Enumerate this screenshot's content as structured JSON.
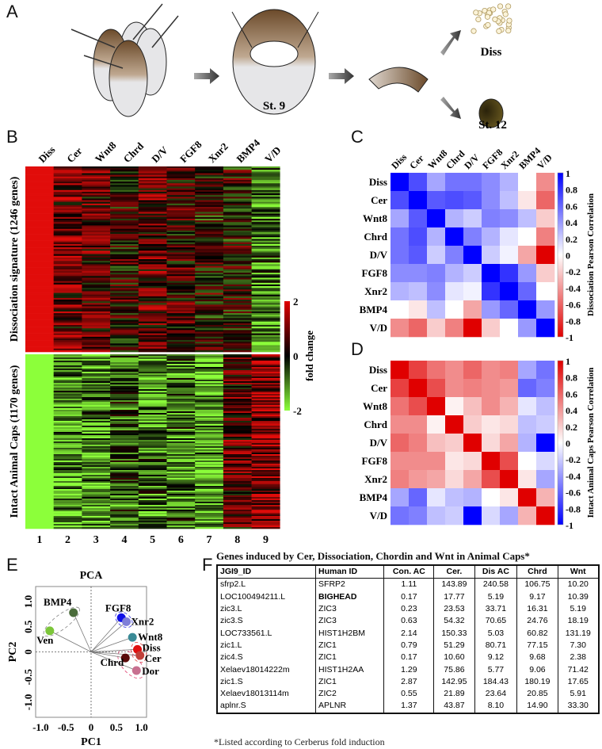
{
  "panel_letters": [
    "A",
    "B",
    "C",
    "D",
    "E",
    "F"
  ],
  "panel_a": {
    "stage9_label": "St. 9",
    "diss_label": "Diss",
    "stage12_label": "St. 12"
  },
  "chart_data": [
    {
      "type": "heatmap",
      "panel": "B",
      "column_labels": [
        "Diss",
        "Cer",
        "Wnt8",
        "Chrd",
        "D/V",
        "FGF8",
        "Xnr2",
        "BMP4",
        "V/D"
      ],
      "column_numbers": [
        "1",
        "2",
        "3",
        "4",
        "5",
        "6",
        "7",
        "8",
        "9"
      ],
      "row_groups": [
        {
          "label": "Dissociation signature (1246 genes)",
          "column_mean_fold_change": [
            2,
            0.9,
            0.7,
            0.2,
            0.8,
            0.4,
            0.1,
            0.1,
            -1.0
          ]
        },
        {
          "label": "Intact Animal Caps (1170 genes)",
          "column_mean_fold_change": [
            -2,
            -1.2,
            -1.0,
            -0.7,
            -0.9,
            -0.9,
            -1.3,
            0.7,
            1.1
          ]
        }
      ],
      "colorbar": {
        "label": "fold change",
        "ticks": [
          "2",
          "0",
          "-2"
        ],
        "range": [
          -2,
          2
        ],
        "colors": {
          "high": "#e00000",
          "mid": "#000000",
          "low": "#8cff3a"
        }
      }
    },
    {
      "type": "heatmap",
      "panel": "C",
      "labels": [
        "Diss",
        "Cer",
        "Wnt8",
        "Chrd",
        "D/V",
        "FGF8",
        "Xnr2",
        "BMP4",
        "V/D"
      ],
      "values": [
        [
          1,
          0.7,
          0.35,
          0.55,
          0.55,
          0.45,
          0.3,
          0,
          -0.45
        ],
        [
          0.7,
          1,
          0.65,
          0.7,
          0.65,
          0.45,
          0.25,
          -0.1,
          -0.6
        ],
        [
          0.35,
          0.65,
          1,
          0.3,
          0.2,
          0.5,
          0.45,
          0.25,
          -0.2
        ],
        [
          0.55,
          0.7,
          0.3,
          1,
          0.5,
          0.3,
          0.1,
          0,
          -0.5
        ],
        [
          0.55,
          0.65,
          0.2,
          0.5,
          1,
          0.2,
          0.05,
          -0.35,
          -1
        ],
        [
          0.45,
          0.45,
          0.5,
          0.3,
          0.2,
          1,
          0.8,
          0.4,
          -0.2
        ],
        [
          0.3,
          0.25,
          0.45,
          0.1,
          0.05,
          0.8,
          1,
          0.6,
          0
        ],
        [
          0,
          -0.1,
          0.25,
          0,
          -0.35,
          0.4,
          0.6,
          1,
          0.4
        ],
        [
          -0.45,
          -0.6,
          -0.2,
          -0.5,
          -1,
          -0.2,
          0,
          0.4,
          1
        ]
      ],
      "colorbar": {
        "label": "Dissociation Pearson Correlation",
        "ticks": [
          "1",
          "0.8",
          "0.6",
          "0.4",
          "0.2",
          "0",
          "-0.2",
          "-0.4",
          "-0.6",
          "-0.8",
          "-1"
        ],
        "range": [
          -1,
          1
        ],
        "colors": {
          "high": "#0000ff",
          "mid": "#ffffff",
          "low": "#e00000"
        }
      }
    },
    {
      "type": "heatmap",
      "panel": "D",
      "labels": [
        "Diss",
        "Cer",
        "Wnt8",
        "Chrd",
        "D/V",
        "FGF8",
        "Xnr2",
        "BMP4",
        "V/D"
      ],
      "values": [
        [
          1,
          0.75,
          0.55,
          0.45,
          0.6,
          0.45,
          0.5,
          -0.35,
          -0.55
        ],
        [
          0.75,
          1,
          0.7,
          0.45,
          0.5,
          0.45,
          0.4,
          -0.6,
          -0.5
        ],
        [
          0.55,
          0.7,
          1,
          0.05,
          0.25,
          0.45,
          0.3,
          -0.1,
          -0.25
        ],
        [
          0.45,
          0.45,
          0.05,
          1,
          0.2,
          0.1,
          0.15,
          -0.25,
          -0.2
        ],
        [
          0.6,
          0.5,
          0.25,
          0.2,
          1,
          0.15,
          0.35,
          -0.3,
          -1
        ],
        [
          0.45,
          0.45,
          0.45,
          0.1,
          0.15,
          1,
          0.7,
          0,
          -0.15
        ],
        [
          0.5,
          0.4,
          0.35,
          0.15,
          0.35,
          0.7,
          1,
          0.1,
          -0.35
        ],
        [
          -0.35,
          -0.6,
          -0.1,
          -0.25,
          -0.3,
          0,
          0.1,
          1,
          0.3
        ],
        [
          -0.55,
          -0.5,
          -0.25,
          -0.2,
          -1,
          -0.15,
          -0.35,
          0.3,
          1
        ]
      ],
      "colorbar": {
        "label": "Intact Animal Caps Pearson Correlation",
        "ticks": [
          "1",
          "0.8",
          "0.6",
          "0.4",
          "0.2",
          "0",
          "-0.2",
          "-0.4",
          "-0.6",
          "-0.8",
          "-1"
        ],
        "range": [
          -1,
          1
        ],
        "colors": {
          "high": "#e00000",
          "mid": "#ffffff",
          "low": "#0000ff"
        }
      }
    },
    {
      "type": "scatter",
      "panel": "E",
      "title": "PCA",
      "xlabel": "PC1",
      "ylabel": "PC2",
      "xlim": [
        -1.1,
        1.1
      ],
      "ylim": [
        -1.3,
        1.3
      ],
      "xticks": [
        "-1.0",
        "-0.5",
        "0",
        "0.5",
        "1.0"
      ],
      "yticks": [
        "1.0",
        "0.5",
        "0",
        "-0.5",
        "-1.0"
      ],
      "points": [
        {
          "name": "BMP4",
          "x": -0.35,
          "y": 0.78,
          "color": "#4a6b3a"
        },
        {
          "name": "Ven",
          "x": -0.82,
          "y": 0.42,
          "color": "#7cc63a"
        },
        {
          "name": "FGF8",
          "x": 0.6,
          "y": 0.68,
          "color": "#1010e8"
        },
        {
          "name": "Xnr2",
          "x": 0.7,
          "y": 0.6,
          "color": "#7f7fd8"
        },
        {
          "name": "Wnt8",
          "x": 0.82,
          "y": 0.29,
          "color": "#3a8a96"
        },
        {
          "name": "Diss",
          "x": 0.92,
          "y": 0.05,
          "color": "#e01010"
        },
        {
          "name": "Cer",
          "x": 0.97,
          "y": -0.07,
          "color": "#c0403a"
        },
        {
          "name": "Chrd",
          "x": 0.68,
          "y": -0.12,
          "color": "#5a0a0a"
        },
        {
          "name": "Dor",
          "x": 0.9,
          "y": -0.37,
          "color": "#c87090"
        }
      ]
    }
  ],
  "table_f": {
    "title": "Genes induced by Cer, Dissociation, Chordin and Wnt in Animal Caps*",
    "headers": [
      "JGI9_ID",
      "Human ID",
      "Con. AC",
      "Cer.",
      "Dis AC",
      "Chrd",
      "Wnt"
    ],
    "rows": [
      [
        "sfrp2.L",
        "SFRP2",
        "1.11",
        "143.89",
        "240.58",
        "106.75",
        "10.20"
      ],
      [
        "LOC100494211.L",
        "BIGHEAD",
        "0.17",
        "17.77",
        "5.19",
        "9.17",
        "10.39"
      ],
      [
        "zic3.L",
        "ZIC3",
        "0.23",
        "23.53",
        "33.71",
        "16.31",
        "5.19"
      ],
      [
        "zic3.S",
        "ZIC3",
        "0.63",
        "54.32",
        "70.65",
        "24.76",
        "18.19"
      ],
      [
        "LOC733561.L",
        "HIST1H2BM",
        "2.14",
        "150.33",
        "5.03",
        "60.82",
        "131.19"
      ],
      [
        "zic1.L",
        "ZIC1",
        "0.79",
        "51.29",
        "80.71",
        "77.15",
        "7.30"
      ],
      [
        "zic4.S",
        "ZIC1",
        "0.17",
        "10.60",
        "9.12",
        "9.68",
        "2.38"
      ],
      [
        "Xelaev18014222m",
        "HIST1H2AA",
        "1.29",
        "75.86",
        "5.77",
        "9.06",
        "71.42"
      ],
      [
        "zic1.S",
        "ZIC1",
        "2.87",
        "142.95",
        "184.43",
        "180.19",
        "17.65"
      ],
      [
        "Xelaev18013114m",
        "ZIC2",
        "0.55",
        "21.89",
        "23.64",
        "20.85",
        "5.91"
      ],
      [
        "aplnr.S",
        "APLNR",
        "1.37",
        "43.87",
        "8.10",
        "14.90",
        "33.30"
      ]
    ],
    "bold_cells": [
      "BIGHEAD"
    ],
    "footnote": "*Listed according to Cerberus fold induction"
  }
}
